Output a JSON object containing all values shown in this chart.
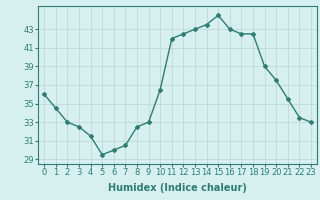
{
  "x": [
    0,
    1,
    2,
    3,
    4,
    5,
    6,
    7,
    8,
    9,
    10,
    11,
    12,
    13,
    14,
    15,
    16,
    17,
    18,
    19,
    20,
    21,
    22,
    23
  ],
  "y": [
    36,
    34.5,
    33,
    32.5,
    31.5,
    29.5,
    30,
    30.5,
    32.5,
    33,
    36.5,
    42,
    42.5,
    43,
    43.5,
    44.5,
    43,
    42.5,
    42.5,
    39,
    37.5,
    35.5,
    33.5,
    33
  ],
  "xlabel": "Humidex (Indice chaleur)",
  "ylabel": "",
  "xlim": [
    -0.5,
    23.5
  ],
  "ylim": [
    28.5,
    45.5
  ],
  "yticks": [
    29,
    31,
    33,
    35,
    37,
    39,
    41,
    43
  ],
  "xticks": [
    0,
    1,
    2,
    3,
    4,
    5,
    6,
    7,
    8,
    9,
    10,
    11,
    12,
    13,
    14,
    15,
    16,
    17,
    18,
    19,
    20,
    21,
    22,
    23
  ],
  "line_color": "#2e7d6e",
  "bg_color": "#d6f0f0",
  "grid_color": "#c0d8d8",
  "marker": "D",
  "marker_size": 2,
  "line_width": 1.0,
  "tick_label_fontsize": 6,
  "xlabel_fontsize": 7
}
